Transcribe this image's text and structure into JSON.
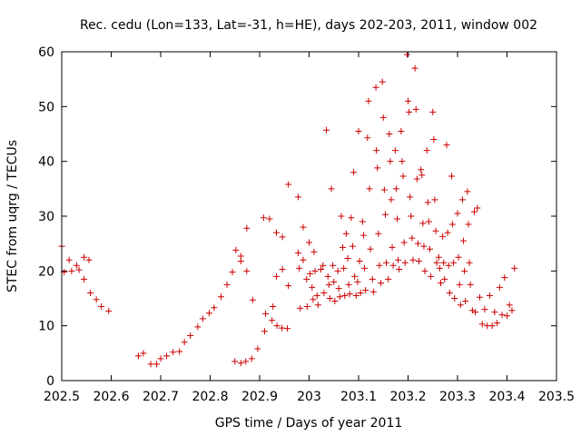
{
  "chart_data": {
    "type": "scatter",
    "title": "Rec. cedu (Lon=133, Lat=-31, h=HE), days 202-203, 2011, window 002",
    "xlabel": "GPS time / Days of year 2011",
    "ylabel": "STEC from uqrg / TECUs",
    "xlim": [
      202.5,
      203.5
    ],
    "ylim": [
      0,
      60
    ],
    "x_ticks": [
      "202.5",
      "202.6",
      "202.7",
      "202.8",
      "202.9",
      "203",
      "203.1",
      "203.2",
      "203.3",
      "203.4",
      "203.5"
    ],
    "y_ticks": [
      "0",
      "10",
      "20",
      "30",
      "40",
      "50",
      "60"
    ],
    "grid": false,
    "marker": "plus",
    "color": "#cc0000",
    "points": [
      [
        202.5,
        24.5
      ],
      [
        202.505,
        19.8
      ],
      [
        202.515,
        22.0
      ],
      [
        202.52,
        20.0
      ],
      [
        202.53,
        21.0
      ],
      [
        202.535,
        20.2
      ],
      [
        202.545,
        22.5
      ],
      [
        202.545,
        18.5
      ],
      [
        202.555,
        22.0
      ],
      [
        202.558,
        16.0
      ],
      [
        202.57,
        14.8
      ],
      [
        202.58,
        13.5
      ],
      [
        202.595,
        12.7
      ],
      [
        202.655,
        4.5
      ],
      [
        202.665,
        5.0
      ],
      [
        202.68,
        3.0
      ],
      [
        202.692,
        3.0
      ],
      [
        202.7,
        4.0
      ],
      [
        202.712,
        4.5
      ],
      [
        202.725,
        5.2
      ],
      [
        202.738,
        5.3
      ],
      [
        202.748,
        7.0
      ],
      [
        202.76,
        8.2
      ],
      [
        202.775,
        9.8
      ],
      [
        202.785,
        11.3
      ],
      [
        202.798,
        12.3
      ],
      [
        202.808,
        13.3
      ],
      [
        202.822,
        15.3
      ],
      [
        202.834,
        17.5
      ],
      [
        202.845,
        19.8
      ],
      [
        202.852,
        23.8
      ],
      [
        202.862,
        22.7
      ],
      [
        202.862,
        21.8
      ],
      [
        202.85,
        3.5
      ],
      [
        202.862,
        3.2
      ],
      [
        202.872,
        3.5
      ],
      [
        202.884,
        4.0
      ],
      [
        202.896,
        5.8
      ],
      [
        202.91,
        9.0
      ],
      [
        202.912,
        12.2
      ],
      [
        202.925,
        11.0
      ],
      [
        202.935,
        10.0
      ],
      [
        202.945,
        9.6
      ],
      [
        202.956,
        9.5
      ],
      [
        202.874,
        27.8
      ],
      [
        202.874,
        20.0
      ],
      [
        202.886,
        14.7
      ],
      [
        202.908,
        29.7
      ],
      [
        202.92,
        29.5
      ],
      [
        202.927,
        13.5
      ],
      [
        202.934,
        19.0
      ],
      [
        202.934,
        27.0
      ],
      [
        202.946,
        26.2
      ],
      [
        202.946,
        20.3
      ],
      [
        202.958,
        35.8
      ],
      [
        202.958,
        17.3
      ],
      [
        202.978,
        33.5
      ],
      [
        202.978,
        23.3
      ],
      [
        202.98,
        20.5
      ],
      [
        202.982,
        13.2
      ],
      [
        202.988,
        28.0
      ],
      [
        202.988,
        22.0
      ],
      [
        202.995,
        18.5
      ],
      [
        202.996,
        13.5
      ],
      [
        203.0,
        25.2
      ],
      [
        203.002,
        19.5
      ],
      [
        203.006,
        17.0
      ],
      [
        203.008,
        14.8
      ],
      [
        203.01,
        23.5
      ],
      [
        203.012,
        20.0
      ],
      [
        203.016,
        15.5
      ],
      [
        203.018,
        13.8
      ],
      [
        203.024,
        20.3
      ],
      [
        203.028,
        21.0
      ],
      [
        203.03,
        16.0
      ],
      [
        203.035,
        45.7
      ],
      [
        203.038,
        19.0
      ],
      [
        203.04,
        17.5
      ],
      [
        203.042,
        15.0
      ],
      [
        203.045,
        35.0
      ],
      [
        203.048,
        21.0
      ],
      [
        203.05,
        18.0
      ],
      [
        203.052,
        14.5
      ],
      [
        203.058,
        20.0
      ],
      [
        203.06,
        16.8
      ],
      [
        203.062,
        15.3
      ],
      [
        203.065,
        30.0
      ],
      [
        203.068,
        24.3
      ],
      [
        203.07,
        20.5
      ],
      [
        203.072,
        15.5
      ],
      [
        203.075,
        26.8
      ],
      [
        203.078,
        22.3
      ],
      [
        203.08,
        17.5
      ],
      [
        203.082,
        15.8
      ],
      [
        203.085,
        29.7
      ],
      [
        203.088,
        24.5
      ],
      [
        203.09,
        38.0
      ],
      [
        203.092,
        19.0
      ],
      [
        203.095,
        15.5
      ],
      [
        203.098,
        18.0
      ],
      [
        203.1,
        45.5
      ],
      [
        203.102,
        21.8
      ],
      [
        203.104,
        16.0
      ],
      [
        203.108,
        29.0
      ],
      [
        203.11,
        26.5
      ],
      [
        203.112,
        20.5
      ],
      [
        203.114,
        16.5
      ],
      [
        203.118,
        44.3
      ],
      [
        203.12,
        51.0
      ],
      [
        203.122,
        35.0
      ],
      [
        203.124,
        24.0
      ],
      [
        203.128,
        18.5
      ],
      [
        203.13,
        16.2
      ],
      [
        203.135,
        53.5
      ],
      [
        203.136,
        42.0
      ],
      [
        203.138,
        38.8
      ],
      [
        203.14,
        26.8
      ],
      [
        203.142,
        21.0
      ],
      [
        203.145,
        17.8
      ],
      [
        203.148,
        54.5
      ],
      [
        203.15,
        48.0
      ],
      [
        203.152,
        34.8
      ],
      [
        203.154,
        30.3
      ],
      [
        203.156,
        21.5
      ],
      [
        203.16,
        18.5
      ],
      [
        203.162,
        45.0
      ],
      [
        203.164,
        40.0
      ],
      [
        203.166,
        33.0
      ],
      [
        203.168,
        24.3
      ],
      [
        203.17,
        21.0
      ],
      [
        203.174,
        42.0
      ],
      [
        203.176,
        35.0
      ],
      [
        203.178,
        29.5
      ],
      [
        203.18,
        22.0
      ],
      [
        203.182,
        20.3
      ],
      [
        203.186,
        45.5
      ],
      [
        203.188,
        40.0
      ],
      [
        203.19,
        37.3
      ],
      [
        203.192,
        25.2
      ],
      [
        203.194,
        21.5
      ],
      [
        203.198,
        59.5
      ],
      [
        203.2,
        51.0
      ],
      [
        203.202,
        49.0
      ],
      [
        203.204,
        33.5
      ],
      [
        203.206,
        30.0
      ],
      [
        203.208,
        26.0
      ],
      [
        203.21,
        22.0
      ],
      [
        203.214,
        57.0
      ],
      [
        203.216,
        49.5
      ],
      [
        203.218,
        36.8
      ],
      [
        203.22,
        25.0
      ],
      [
        203.222,
        21.8
      ],
      [
        203.226,
        38.5
      ],
      [
        203.228,
        37.5
      ],
      [
        203.23,
        28.7
      ],
      [
        203.232,
        24.5
      ],
      [
        203.234,
        20.0
      ],
      [
        203.238,
        42.0
      ],
      [
        203.24,
        32.5
      ],
      [
        203.242,
        29.0
      ],
      [
        203.244,
        24.0
      ],
      [
        203.246,
        19.0
      ],
      [
        203.25,
        49.0
      ],
      [
        203.252,
        44.0
      ],
      [
        203.254,
        33.0
      ],
      [
        203.256,
        27.3
      ],
      [
        203.258,
        21.5
      ],
      [
        203.262,
        22.5
      ],
      [
        203.264,
        20.5
      ],
      [
        203.266,
        17.8
      ],
      [
        203.27,
        26.3
      ],
      [
        203.272,
        21.5
      ],
      [
        203.274,
        18.5
      ],
      [
        203.278,
        43.0
      ],
      [
        203.28,
        27.0
      ],
      [
        203.282,
        21.0
      ],
      [
        203.284,
        16.0
      ],
      [
        203.288,
        37.3
      ],
      [
        203.29,
        28.5
      ],
      [
        203.292,
        21.5
      ],
      [
        203.294,
        15.0
      ],
      [
        203.3,
        30.5
      ],
      [
        203.302,
        22.5
      ],
      [
        203.304,
        17.5
      ],
      [
        203.306,
        13.8
      ],
      [
        203.31,
        33.0
      ],
      [
        203.312,
        25.5
      ],
      [
        203.314,
        20.0
      ],
      [
        203.316,
        14.5
      ],
      [
        203.32,
        34.5
      ],
      [
        203.322,
        28.5
      ],
      [
        203.324,
        21.5
      ],
      [
        203.326,
        17.5
      ],
      [
        203.33,
        12.8
      ],
      [
        203.334,
        30.8
      ],
      [
        203.336,
        12.5
      ],
      [
        203.34,
        31.5
      ],
      [
        203.345,
        15.2
      ],
      [
        203.35,
        10.3
      ],
      [
        203.355,
        13.0
      ],
      [
        203.36,
        10.0
      ],
      [
        203.365,
        15.5
      ],
      [
        203.37,
        10.0
      ],
      [
        203.375,
        12.5
      ],
      [
        203.38,
        10.5
      ],
      [
        203.385,
        17.0
      ],
      [
        203.39,
        12.0
      ],
      [
        203.395,
        18.8
      ],
      [
        203.4,
        11.8
      ],
      [
        203.405,
        13.8
      ],
      [
        203.41,
        12.8
      ],
      [
        203.415,
        20.5
      ]
    ]
  }
}
